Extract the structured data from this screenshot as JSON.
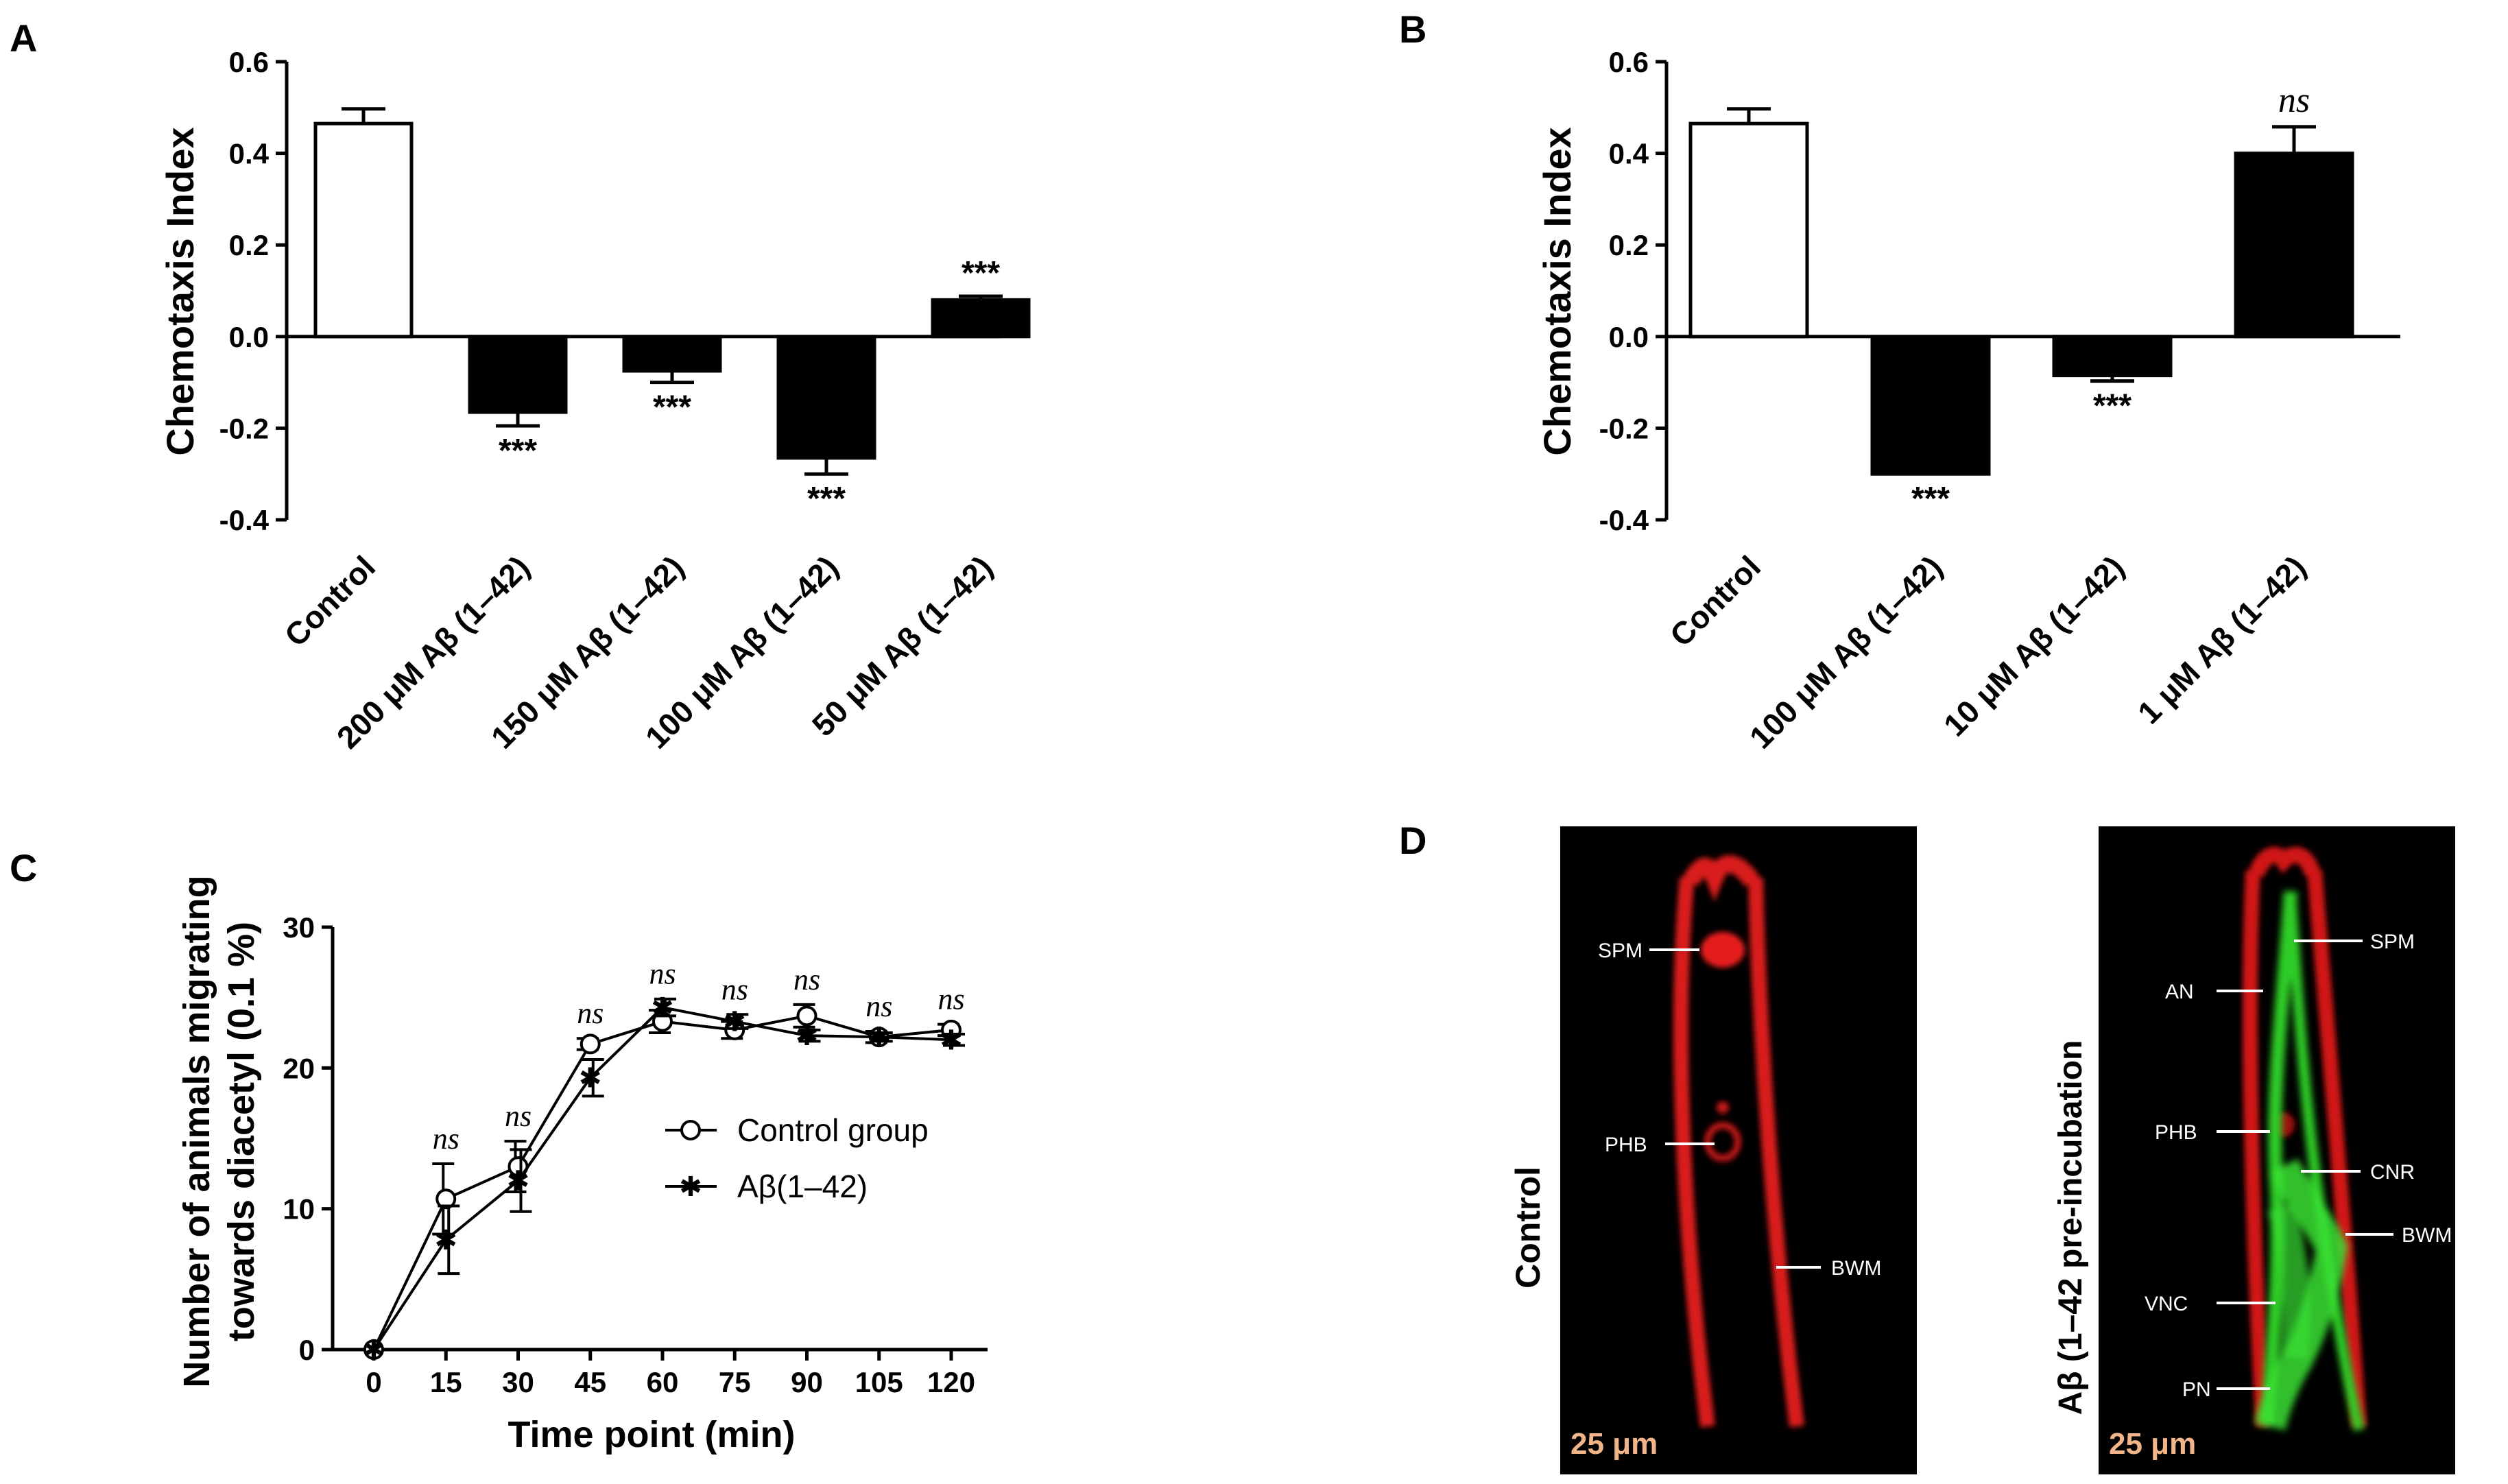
{
  "panels": {
    "A": "A",
    "B": "B",
    "C": "C",
    "D": "D"
  },
  "chart_data": [
    {
      "id": "A",
      "type": "bar",
      "ylabel": "Chemotaxis Index",
      "ylim": [
        -0.4,
        0.6
      ],
      "yticks": [
        "-0.4",
        "-0.2",
        "0.0",
        "0.2",
        "0.4",
        "0.6"
      ],
      "categories": [
        "Control",
        "200 μM Aβ (1–42)",
        "150 μM Aβ (1–42)",
        "100 μM Aβ (1–42)",
        "50 μM Aβ (1–42)"
      ],
      "values": [
        0.465,
        -0.165,
        -0.075,
        -0.265,
        0.08
      ],
      "errors": [
        0.032,
        0.03,
        0.025,
        0.035,
        0.008
      ],
      "fills": [
        "#ffffff",
        "#000000",
        "#000000",
        "#000000",
        "#000000"
      ],
      "significance": [
        "",
        "***",
        "***",
        "***",
        "***"
      ]
    },
    {
      "id": "B",
      "type": "bar",
      "ylabel": "Chemotaxis Index",
      "ylim": [
        -0.4,
        0.6
      ],
      "yticks": [
        "-0.4",
        "-0.2",
        "0.0",
        "0.2",
        "0.4",
        "0.6"
      ],
      "categories": [
        "Control",
        "100 μM Aβ (1–42)",
        "10 μM Aβ (1–42)",
        "1 μM Aβ (1–42)"
      ],
      "values": [
        0.465,
        -0.3,
        -0.085,
        0.4
      ],
      "errors": [
        0.032,
        0.0,
        0.012,
        0.058
      ],
      "fills": [
        "#ffffff",
        "#000000",
        "#000000",
        "#000000"
      ],
      "significance": [
        "",
        "***",
        "***",
        "ns"
      ]
    },
    {
      "id": "C",
      "type": "line",
      "xlabel": "Time point (min)",
      "ylabel_lines": [
        "Number of animals migrating",
        "towards diacetyl (0.1 %)"
      ],
      "xlim": [
        0,
        120
      ],
      "ylim": [
        0,
        30
      ],
      "x": [
        0,
        15,
        30,
        45,
        60,
        75,
        90,
        105,
        120
      ],
      "xticks": [
        "0",
        "15",
        "30",
        "45",
        "60",
        "75",
        "90",
        "105",
        "120"
      ],
      "yticks": [
        "0",
        "10",
        "20",
        "30"
      ],
      "series": [
        {
          "name": "Control group",
          "marker": "circle",
          "values": [
            0,
            10.7,
            13,
            21.7,
            23.3,
            22.7,
            23.7,
            22.2,
            22.7
          ],
          "errors": [
            0,
            2.5,
            1.8,
            0.4,
            0.8,
            0.6,
            0.8,
            0.4,
            0.4
          ]
        },
        {
          "name": "Aβ(1–42)",
          "marker": "star",
          "values": [
            0,
            7.8,
            12,
            19.3,
            24.3,
            23.3,
            22.3,
            22.2,
            22
          ],
          "errors": [
            0,
            2.4,
            2.2,
            1.3,
            0.6,
            0.5,
            0.4,
            0.3,
            0.4
          ]
        }
      ],
      "significance": [
        "",
        "ns",
        "ns",
        "ns",
        "ns",
        "ns",
        "ns",
        "ns",
        "ns"
      ],
      "legend_position": "center-right"
    }
  ],
  "panel_d": {
    "left_side_label": "Control",
    "right_side_label": "Aβ (1–42 pre-incubation",
    "scale_bar_left": "25 μm",
    "scale_bar_right": "25 μm",
    "left_labels": [
      "SPM",
      "PHB",
      "BWM"
    ],
    "right_labels": [
      "SPM",
      "AN",
      "PHB",
      "CNR",
      "BWM",
      "VNC",
      "PN"
    ],
    "colors": {
      "background": "#000000",
      "red": "#e01818",
      "green": "#33dd2a",
      "scale_text": "#f2b58a"
    }
  }
}
